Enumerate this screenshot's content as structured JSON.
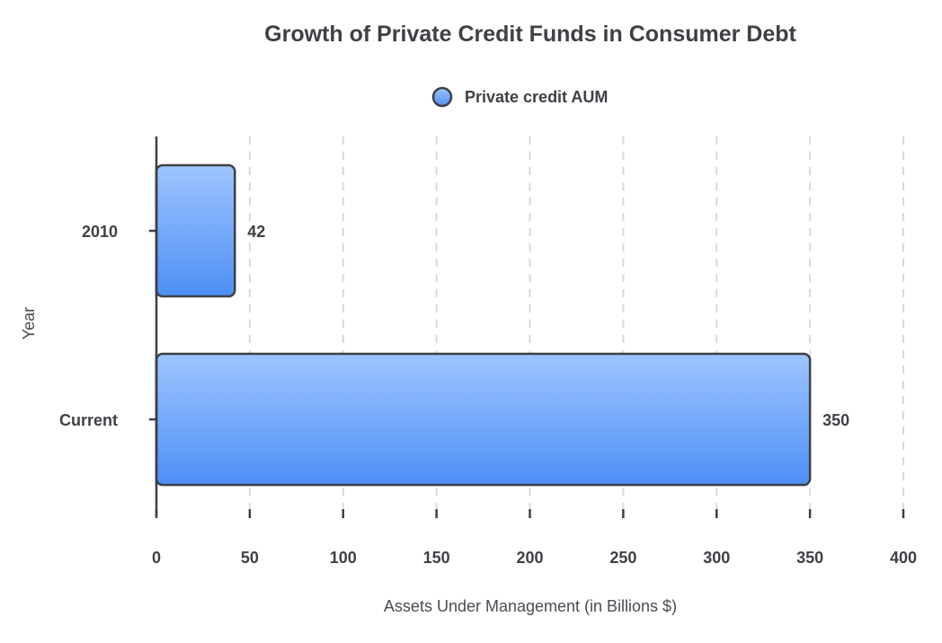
{
  "chart_data": {
    "type": "bar",
    "orientation": "horizontal",
    "title": "Growth of Private Credit Funds in Consumer Debt",
    "xlabel": "Assets Under Management (in Billions $)",
    "ylabel": "Year",
    "categories": [
      "2010",
      "Current"
    ],
    "series": [
      {
        "name": "Private credit AUM",
        "values": [
          42,
          350
        ],
        "data_labels": [
          "42",
          "350"
        ]
      }
    ],
    "xlim": [
      0,
      400
    ],
    "x_ticks": [
      0,
      50,
      100,
      150,
      200,
      250,
      300,
      350,
      400
    ],
    "x_tick_labels": [
      "0",
      "50",
      "100",
      "150",
      "200",
      "250",
      "300",
      "350",
      "400"
    ],
    "grid": "vertical dashed",
    "legend_position": "top-center",
    "colors": {
      "bar_top": "#9ec5ff",
      "bar_bottom": "#4d8ff5",
      "bar_stroke": "#3f3f46",
      "axis": "#3f3f46",
      "grid": "#d9d9d9",
      "text": "#3f3f46"
    }
  }
}
